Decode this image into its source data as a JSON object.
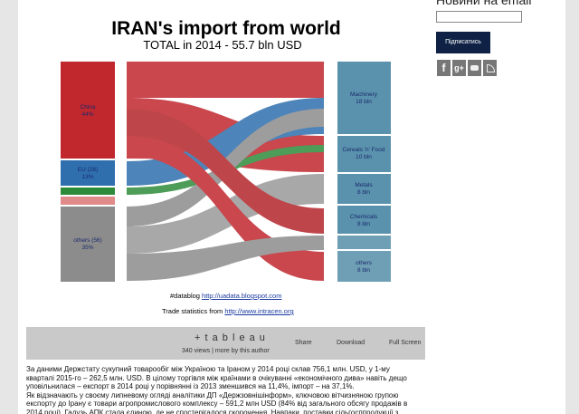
{
  "sidebar": {
    "heading": "Новини на email",
    "button": "Підписатись",
    "social": [
      "f",
      "g+"
    ]
  },
  "chart": {
    "title": "IRAN's import from world",
    "subtitle": "TOTAL in 2014 - 55.7 bln USD",
    "left_labels": [
      {
        "name": "China",
        "share": "44%"
      },
      {
        "name": "EU (28)",
        "share": "13%"
      },
      {
        "name": "others (56)",
        "share": "35%"
      }
    ],
    "right_labels": [
      {
        "name": "Machinery",
        "amount": "18 bln"
      },
      {
        "name": "Cereals 'n' Food",
        "amount": "10 bln"
      },
      {
        "name": "Metals",
        "amount": "8 bln"
      },
      {
        "name": "Chemicals",
        "amount": "8 bln"
      },
      {
        "name": "others",
        "amount": "8 bln"
      }
    ],
    "credits": {
      "tag": "#datablog",
      "blog_link": "http://uadata.blogspot.com",
      "source_text": "Trade statistics from",
      "source_link": "http://www.intracen.org"
    }
  },
  "embed_bar": {
    "logo": "+ t a b l e a u",
    "views": "340 views | more by this author",
    "share": "Share",
    "download": "Download",
    "full_screen": "Full Screen"
  },
  "article": {
    "paragraphs": [
      "За даними Держстату сукупний товарообіг між Україною та Іраном у 2014 році склав 756,1 млн. USD, у 1-му кварталі 2015-го – 262,5 млн. USD. В цілому торгівля між країнами в очікуванні «економічного дива» навіть дещо уповільнилася – експорт в 2014 році у порівнянні із 2013 зменшився на 11,4%, імпорт – на 37,1%.",
      "Як відзначають у своєму липневому огляді аналітики ДП «Держзовнішінформ», ключовою вітчизняною групою експорту до Ірану є товари агропромислового комплексу – 591,2 млн USD (84% від загального обсягу продажів в 2014 році). Галузь АПК стала єдиною, де не спостерігалося скорочення. Навпаки, поставки сільгосппродукції з"
    ]
  }
}
